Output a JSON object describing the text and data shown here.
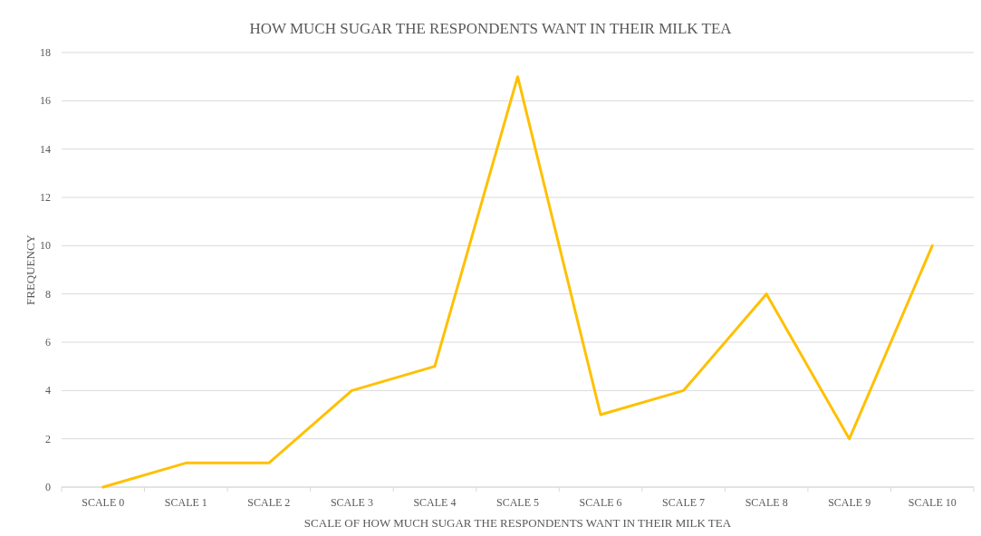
{
  "chart_data": {
    "type": "line",
    "title": "HOW MUCH SUGAR THE RESPONDENTS WANT IN THEIR MILK TEA",
    "xlabel": "SCALE OF HOW MUCH SUGAR THE RESPONDENTS WANT IN THEIR MILK TEA",
    "ylabel": "FREQUENCY",
    "categories": [
      "SCALE 0",
      "SCALE 1",
      "SCALE 2",
      "SCALE 3",
      "SCALE 4",
      "SCALE 5",
      "SCALE 6",
      "SCALE 7",
      "SCALE 8",
      "SCALE 9",
      "SCALE 10"
    ],
    "series": [
      {
        "color": "#ffc000",
        "values": [
          0,
          1,
          1,
          4,
          5,
          17,
          3,
          4,
          8,
          2,
          10
        ]
      }
    ],
    "ylim": [
      0,
      18
    ],
    "yticks": [
      0,
      2,
      4,
      6,
      8,
      10,
      12,
      14,
      16,
      18
    ],
    "grid": "y",
    "marker": "none",
    "line_style": "solid"
  }
}
